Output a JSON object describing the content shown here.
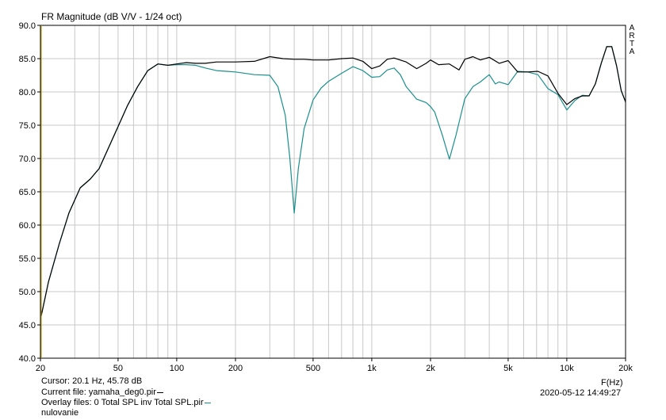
{
  "window": {
    "title": "FR Magnitude (dB V/V - 1/24 oct)",
    "brand_letters": [
      "A",
      "R",
      "T",
      "A"
    ]
  },
  "footer": {
    "cursor": "Cursor: 20.1 Hz, 45.78 dB",
    "current_file": "Current file: yamaha_deg0.pir",
    "overlay_files": "Overlay files: 0 Total SPL inv Total SPL.pir",
    "overlay_line2": "nulovanie",
    "x_unit": "F(Hz)",
    "datetime": "2020-05-12   14:49:27"
  },
  "colors": {
    "background": "#ffffff",
    "grid": "#c8c8c8",
    "axis": "#000000",
    "current_trace": "#000000",
    "overlay_trace": "#1b8f8f",
    "cursor_line": "#c8a000"
  },
  "chart_data": {
    "type": "line",
    "title": "FR Magnitude (dB V/V - 1/24 oct)",
    "xlabel": "F(Hz)",
    "ylabel": "",
    "xscale": "log",
    "xlim": [
      20,
      20000
    ],
    "ylim": [
      40,
      90
    ],
    "yticks": [
      "40.0",
      "45.0",
      "50.0",
      "55.0",
      "60.0",
      "65.0",
      "70.0",
      "75.0",
      "80.0",
      "85.0",
      "90.0"
    ],
    "xticks": [
      {
        "v": 20,
        "label": "20"
      },
      {
        "v": 50,
        "label": "50"
      },
      {
        "v": 100,
        "label": "100"
      },
      {
        "v": 200,
        "label": "200"
      },
      {
        "v": 500,
        "label": "500"
      },
      {
        "v": 1000,
        "label": "1k"
      },
      {
        "v": 2000,
        "label": "2k"
      },
      {
        "v": 5000,
        "label": "5k"
      },
      {
        "v": 10000,
        "label": "10k"
      },
      {
        "v": 20000,
        "label": "20k"
      }
    ],
    "grid": true,
    "series": [
      {
        "name": "yamaha_deg0.pir",
        "color": "#000000",
        "x": [
          20,
          22,
          25,
          28,
          32,
          36,
          40,
          45,
          50,
          56,
          63,
          71,
          80,
          90,
          100,
          112,
          125,
          140,
          160,
          180,
          200,
          250,
          300,
          350,
          400,
          450,
          500,
          600,
          700,
          800,
          900,
          1000,
          1100,
          1200,
          1300,
          1500,
          1700,
          1900,
          2000,
          2200,
          2500,
          2800,
          3000,
          3300,
          3600,
          4000,
          4500,
          5000,
          5600,
          6300,
          7100,
          8000,
          9000,
          10000,
          11000,
          12000,
          13000,
          14000,
          15000,
          16000,
          17000,
          18000,
          19000,
          20000
        ],
        "y": [
          45.8,
          51.5,
          57.2,
          61.8,
          65.6,
          66.9,
          68.5,
          71.8,
          74.8,
          78.0,
          80.8,
          83.2,
          84.2,
          84.0,
          84.2,
          84.4,
          84.3,
          84.3,
          84.5,
          84.5,
          84.5,
          84.6,
          85.3,
          85.0,
          84.9,
          84.9,
          84.8,
          84.8,
          85.0,
          85.1,
          84.6,
          83.5,
          83.9,
          84.9,
          85.1,
          84.5,
          83.5,
          84.3,
          84.8,
          84.1,
          84.2,
          83.3,
          84.9,
          85.3,
          84.8,
          85.2,
          84.3,
          84.7,
          83.0,
          83.0,
          83.1,
          82.4,
          79.8,
          78.1,
          79.0,
          79.4,
          79.4,
          81.2,
          84.3,
          86.8,
          86.8,
          83.9,
          80.2,
          78.5
        ]
      },
      {
        "name": "0 Total SPL inv Total SPL.pir",
        "color": "#1b8f8f",
        "x": [
          20,
          22,
          25,
          28,
          32,
          36,
          40,
          45,
          50,
          56,
          63,
          71,
          80,
          90,
          100,
          112,
          125,
          140,
          160,
          180,
          200,
          250,
          300,
          330,
          360,
          380,
          400,
          420,
          450,
          500,
          550,
          600,
          700,
          800,
          900,
          1000,
          1100,
          1200,
          1300,
          1400,
          1500,
          1700,
          1900,
          2000,
          2100,
          2300,
          2500,
          2700,
          3000,
          3300,
          3600,
          4000,
          4300,
          4500,
          5000,
          5600,
          6300,
          7100,
          8000,
          9000,
          10000,
          11000,
          12000,
          13000,
          14000,
          15000,
          16000,
          17000,
          18000,
          19000,
          20000
        ],
        "y": [
          45.8,
          51.5,
          57.2,
          61.8,
          65.6,
          66.9,
          68.5,
          71.8,
          74.8,
          78.0,
          80.8,
          83.2,
          84.2,
          84.0,
          84.1,
          84.1,
          84.0,
          83.6,
          83.2,
          83.1,
          83.0,
          82.6,
          82.5,
          80.8,
          76.5,
          70.0,
          61.8,
          68.5,
          74.5,
          78.8,
          80.6,
          81.6,
          82.8,
          83.8,
          83.2,
          82.2,
          82.3,
          83.3,
          83.6,
          82.6,
          80.8,
          78.9,
          78.4,
          77.8,
          77.0,
          73.5,
          69.9,
          73.5,
          79.0,
          80.8,
          81.5,
          82.6,
          81.2,
          81.5,
          81.1,
          83.1,
          83.0,
          82.6,
          80.5,
          79.6,
          77.3,
          78.7,
          79.5,
          79.4,
          81.2,
          84.3,
          86.8,
          86.8,
          83.9,
          80.2,
          78.5
        ]
      }
    ]
  }
}
